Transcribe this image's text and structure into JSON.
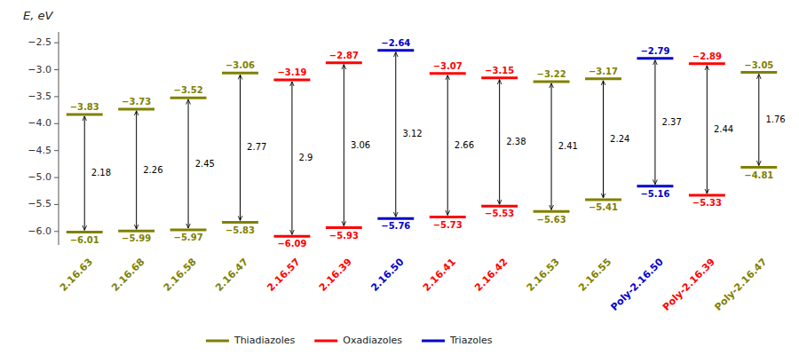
{
  "chart_data": {
    "type": "energy_level",
    "title": "E, eV",
    "categories": [
      "2.16.63",
      "2.16.68",
      "2.16.58",
      "2.16.47",
      "2.16.57",
      "2.16.39",
      "2.16.50",
      "2.16.41",
      "2.16.42",
      "2.16.53",
      "2.16.55",
      "Poly-2.16.50",
      "Poly-2.16.39",
      "Poly-2.16.47"
    ],
    "series": [
      {
        "name": "Thiadiazoles",
        "color": "#808000",
        "lumo": [
          -3.83,
          -3.73,
          -3.52,
          -3.06,
          null,
          null,
          null,
          null,
          null,
          -3.22,
          -3.17,
          null,
          null,
          -3.05
        ],
        "homo": [
          -6.01,
          -5.99,
          -5.97,
          -5.83,
          null,
          null,
          null,
          null,
          null,
          -5.63,
          -5.41,
          null,
          null,
          -4.81
        ],
        "gap": [
          2.18,
          2.26,
          2.45,
          2.77,
          null,
          null,
          null,
          null,
          null,
          2.41,
          2.24,
          null,
          null,
          1.76
        ],
        "lumo_labels": [
          "−3.83",
          "−3.73",
          "−3.52",
          "−3.06",
          null,
          null,
          null,
          null,
          null,
          "−3.22",
          "−3.17",
          null,
          null,
          "−3.05"
        ],
        "homo_labels": [
          "−6.01",
          "−5.99",
          "−5.97",
          "−5.83",
          null,
          null,
          null,
          null,
          null,
          "−5.63",
          "−5.41",
          null,
          null,
          "−4.81"
        ]
      },
      {
        "name": "Oxadiazoles",
        "color": "#ff0000",
        "lumo": [
          null,
          null,
          null,
          null,
          -3.19,
          -2.87,
          null,
          -3.07,
          -3.15,
          null,
          null,
          null,
          -2.89,
          null
        ],
        "homo": [
          null,
          null,
          null,
          null,
          -6.09,
          -5.93,
          null,
          -5.73,
          -5.53,
          null,
          null,
          null,
          -5.33,
          null
        ],
        "gap": [
          null,
          null,
          null,
          null,
          2.9,
          3.06,
          null,
          2.66,
          2.38,
          null,
          null,
          null,
          2.44,
          null
        ],
        "lumo_labels": [
          null,
          null,
          null,
          null,
          "−3.19",
          "−2.87",
          null,
          "−3.07",
          "−3.15",
          null,
          null,
          null,
          "−2.89",
          null
        ],
        "homo_labels": [
          null,
          null,
          null,
          null,
          "−6.09",
          "−5.93",
          null,
          "−5.73",
          "−5.53",
          null,
          null,
          null,
          "−5.33",
          null
        ]
      },
      {
        "name": "Triazoles",
        "color": "#0000cc",
        "lumo": [
          null,
          null,
          null,
          null,
          null,
          null,
          -2.64,
          null,
          null,
          null,
          null,
          -2.79,
          null,
          null
        ],
        "homo": [
          null,
          null,
          null,
          null,
          null,
          null,
          -5.76,
          null,
          null,
          null,
          null,
          -5.16,
          null,
          null
        ],
        "gap": [
          null,
          null,
          null,
          null,
          null,
          null,
          3.12,
          null,
          null,
          null,
          null,
          2.37,
          null,
          null
        ],
        "lumo_labels": [
          null,
          null,
          null,
          null,
          null,
          null,
          "−2.64",
          null,
          null,
          null,
          null,
          "−2.79",
          null,
          null
        ],
        "homo_labels": [
          null,
          null,
          null,
          null,
          null,
          null,
          "−5.76",
          null,
          null,
          null,
          null,
          "−5.16",
          null,
          null
        ]
      }
    ],
    "ylim": [
      -6.25,
      -2.3
    ],
    "yticks": [
      {
        "value": -6.0,
        "label": "−6.0"
      },
      {
        "value": -5.5,
        "label": "−5.5"
      },
      {
        "value": -5.0,
        "label": "−5.0"
      },
      {
        "value": -4.5,
        "label": "−4.5"
      },
      {
        "value": -4.0,
        "label": "−4.0"
      },
      {
        "value": -3.5,
        "label": "−3.5"
      },
      {
        "value": -3.0,
        "label": "−3.0"
      },
      {
        "value": -2.5,
        "label": "−2.5"
      }
    ],
    "grid": false
  }
}
